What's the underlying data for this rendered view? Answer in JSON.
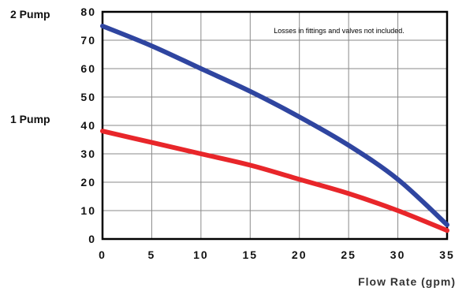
{
  "chart_data": {
    "type": "line",
    "title": "",
    "annotation": "Losses in fittings and valves not included.",
    "xlabel": "Flow Rate (gpm)",
    "ylabel": "",
    "xlim": [
      0,
      35
    ],
    "ylim": [
      0,
      80
    ],
    "x_ticks": [
      0,
      5,
      10,
      15,
      20,
      25,
      30,
      35
    ],
    "y_ticks": [
      0,
      10,
      20,
      30,
      40,
      50,
      60,
      70,
      80
    ],
    "grid": true,
    "series": [
      {
        "name": "2 Pump",
        "color": "#2f45a0",
        "x": [
          0,
          5,
          10,
          15,
          20,
          25,
          30,
          35
        ],
        "y": [
          75,
          68,
          60,
          52,
          43,
          33,
          21,
          5
        ]
      },
      {
        "name": "1 Pump",
        "color": "#e8262a",
        "x": [
          0,
          5,
          10,
          15,
          20,
          25,
          30,
          35
        ],
        "y": [
          38,
          34,
          30,
          26,
          21,
          16,
          10,
          3
        ]
      }
    ]
  }
}
